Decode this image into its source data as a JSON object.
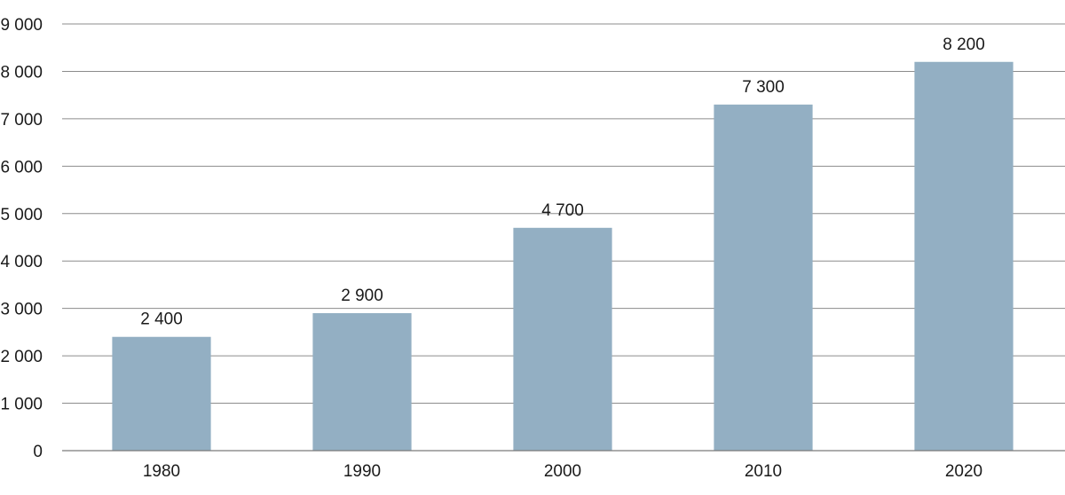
{
  "chart_data": {
    "type": "bar",
    "title": "",
    "xlabel": "",
    "ylabel": "",
    "categories": [
      "1980",
      "1990",
      "2000",
      "2010",
      "2020"
    ],
    "values": [
      2400,
      2900,
      4700,
      7300,
      8200
    ],
    "value_labels": [
      "2 400",
      "2 900",
      "4 700",
      "7 300",
      "8 200"
    ],
    "ylim": [
      0,
      9000
    ],
    "yticks": [
      0,
      1000,
      2000,
      3000,
      4000,
      5000,
      6000,
      7000,
      8000,
      9000
    ],
    "ytick_labels": [
      "0",
      "1 000",
      "2 000",
      "3 000",
      "4 000",
      "5 000",
      "6 000",
      "7 000",
      "8 000",
      "9 000"
    ],
    "grid": true,
    "bar_color": "#93afc3"
  }
}
